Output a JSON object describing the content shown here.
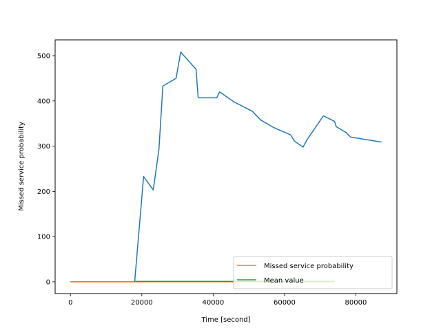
{
  "chart_data": {
    "type": "line",
    "title": "",
    "xlabel": "Time [second]",
    "ylabel": "Missed service probability",
    "xlim": [
      -4300,
      91500
    ],
    "ylim": [
      -26,
      535
    ],
    "xticks": [
      0,
      20000,
      40000,
      60000,
      80000
    ],
    "yticks": [
      0,
      100,
      200,
      300,
      400,
      500
    ],
    "grid": false,
    "legend_position": "lower-right",
    "series": [
      {
        "color": "#1f77b4",
        "x": [
          0,
          18000,
          20500,
          23200,
          24800,
          25900,
          29600,
          30900,
          35200,
          35800,
          41000,
          41800,
          45800,
          51000,
          53300,
          57000,
          61700,
          62800,
          65200,
          66300,
          70900,
          74000,
          74500,
          77300,
          78500,
          87200
        ],
        "y": [
          0,
          0,
          233,
          203,
          293,
          433,
          450,
          508,
          470,
          407,
          407,
          420,
          398,
          377,
          358,
          341,
          325,
          311,
          298,
          314,
          367,
          355,
          343,
          330,
          320,
          309
        ]
      },
      {
        "name": "Missed service probability",
        "color": "#ff7f0e",
        "x": [
          0,
          74000
        ],
        "y": [
          0,
          0
        ]
      },
      {
        "name": "Mean value",
        "color": "#2ca02c",
        "x": [
          18000,
          74000
        ],
        "y": [
          1,
          1
        ]
      }
    ]
  }
}
